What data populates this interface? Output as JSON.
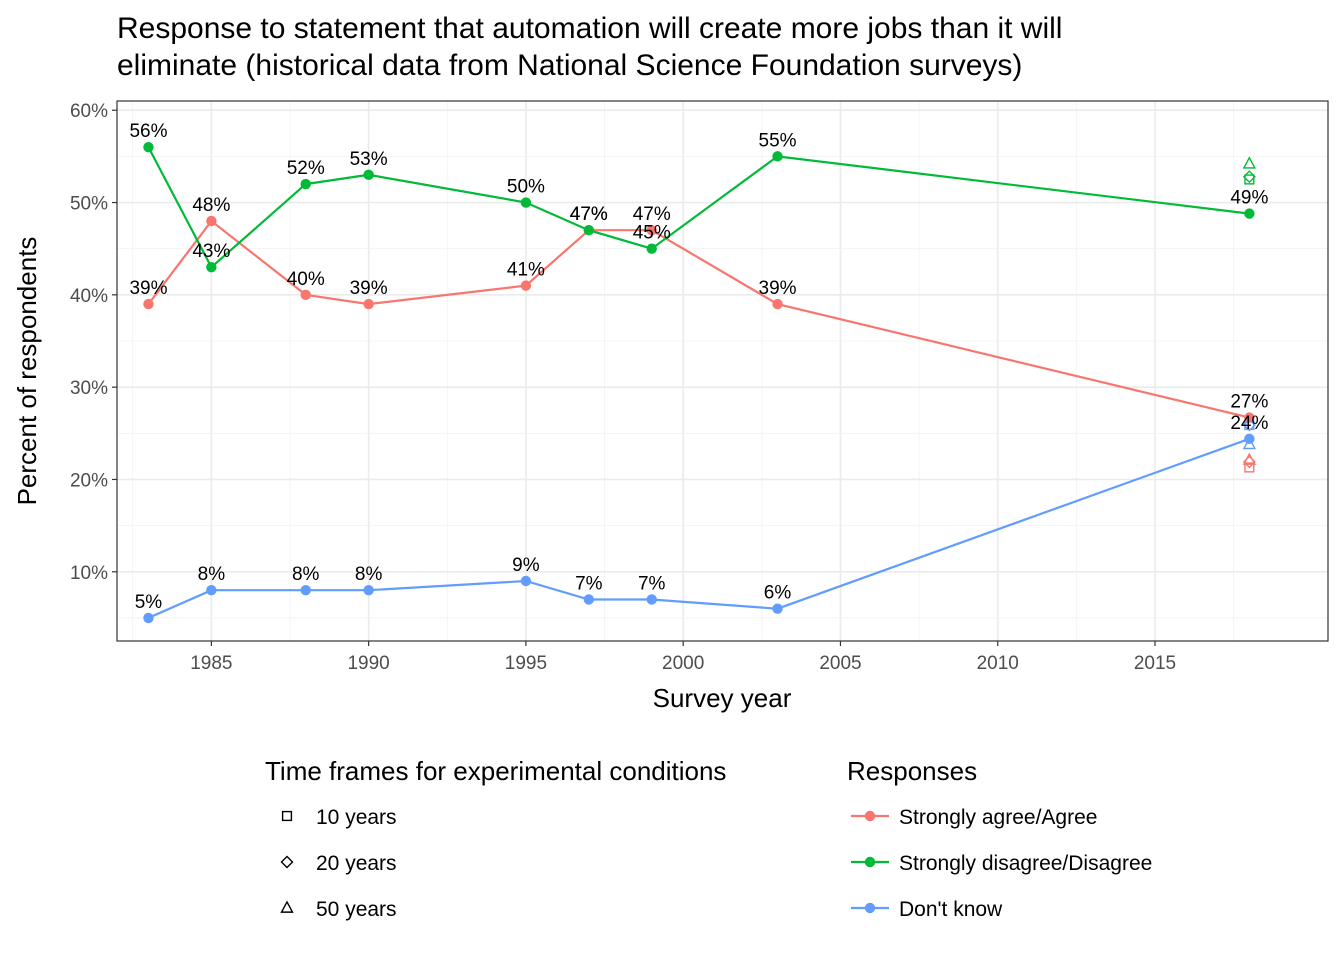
{
  "chart_data": {
    "type": "line",
    "title": "Response to statement that automation will create more jobs than it will eliminate (historical data from National Science Foundation surveys)",
    "title_lines": [
      "Response to statement that automation will create more jobs than it will",
      "eliminate (historical data from National Science Foundation surveys)"
    ],
    "xlabel": "Survey year",
    "ylabel": "Percent of respondents",
    "xlim": [
      1982,
      2020.5
    ],
    "ylim": [
      2.5,
      61
    ],
    "x_ticks": [
      1985,
      1990,
      1995,
      2000,
      2005,
      2010,
      2015
    ],
    "y_ticks": [
      10,
      20,
      30,
      40,
      50,
      60
    ],
    "y_tick_labels": [
      "10%",
      "20%",
      "30%",
      "40%",
      "50%",
      "60%"
    ],
    "grid": true,
    "series": [
      {
        "name": "Strongly agree/Agree",
        "color": "#F8766D",
        "x": [
          1983,
          1985,
          1988,
          1990,
          1995,
          1997,
          1999,
          2003,
          2018
        ],
        "values": [
          39,
          48,
          40,
          39,
          41,
          47,
          47,
          39,
          26.7
        ],
        "labels": [
          "39%",
          "48%",
          "40%",
          "39%",
          "41%",
          "47%",
          "47%",
          "39%",
          "27%"
        ]
      },
      {
        "name": "Strongly disagree/Disagree",
        "color": "#00BA38",
        "x": [
          1983,
          1985,
          1988,
          1990,
          1995,
          1997,
          1999,
          2003,
          2018
        ],
        "values": [
          56,
          43,
          52,
          53,
          50,
          47,
          45,
          55,
          48.8
        ],
        "labels": [
          "56%",
          "43%",
          "52%",
          "53%",
          "50%",
          "47%",
          "45%",
          "55%",
          "49%"
        ]
      },
      {
        "name": "Don't know",
        "color": "#619CFF",
        "x": [
          1983,
          1985,
          1988,
          1990,
          1995,
          1997,
          1999,
          2003,
          2018
        ],
        "values": [
          5,
          8,
          8,
          8,
          9,
          7,
          7,
          6,
          24.4
        ],
        "labels": [
          "5%",
          "8%",
          "8%",
          "8%",
          "9%",
          "7%",
          "7%",
          "6%",
          "24%"
        ]
      }
    ],
    "experimental_points": [
      {
        "x": 2018,
        "y": 52.5,
        "shape": "square",
        "series": "Strongly disagree/Disagree"
      },
      {
        "x": 2018,
        "y": 52.8,
        "shape": "diamond",
        "series": "Strongly disagree/Disagree"
      },
      {
        "x": 2018,
        "y": 54.2,
        "shape": "triangle",
        "series": "Strongly disagree/Disagree"
      },
      {
        "x": 2018,
        "y": 21.3,
        "shape": "square",
        "series": "Strongly agree/Agree"
      },
      {
        "x": 2018,
        "y": 21.9,
        "shape": "diamond",
        "series": "Strongly agree/Agree"
      },
      {
        "x": 2018,
        "y": 22.1,
        "shape": "triangle",
        "series": "Strongly agree/Agree"
      },
      {
        "x": 2018,
        "y": 25.9,
        "shape": "square",
        "series": "Don't know"
      },
      {
        "x": 2018,
        "y": 25.9,
        "shape": "diamond",
        "series": "Don't know"
      },
      {
        "x": 2018,
        "y": 23.8,
        "shape": "triangle",
        "series": "Don't know"
      }
    ],
    "legends": [
      {
        "title": "Time frames for experimental conditions",
        "items": [
          {
            "label": "10 years",
            "shape": "square"
          },
          {
            "label": "20 years",
            "shape": "diamond"
          },
          {
            "label": "50 years",
            "shape": "triangle"
          }
        ]
      },
      {
        "title": "Responses",
        "items": [
          {
            "label": "Strongly agree/Agree",
            "color": "#F8766D"
          },
          {
            "label": "Strongly disagree/Disagree",
            "color": "#00BA38"
          },
          {
            "label": "Don't know",
            "color": "#619CFF"
          }
        ]
      }
    ],
    "legend_position": "bottom"
  }
}
